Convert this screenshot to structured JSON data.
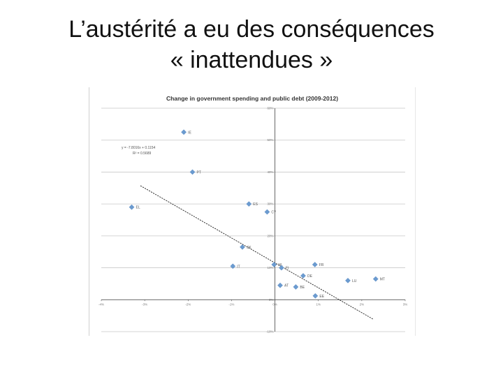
{
  "slide": {
    "title_line1": "L’austérité a eu des conséquences",
    "title_line2": "« inattendues »"
  },
  "colors": {
    "marker": "#6b9bd0",
    "grid": "#c8c8c8",
    "axis": "#555555",
    "trend": "#222222"
  },
  "chart_data": {
    "type": "scatter",
    "title": "Change in government spending and public debt (2009-2012)",
    "xlabel": "",
    "ylabel": "",
    "xlim": [
      -0.04,
      0.03
    ],
    "ylim": [
      -0.1,
      0.6
    ],
    "x_ticks": [
      "-4%",
      "-3%",
      "-2%",
      "-1%",
      "0%",
      "1%",
      "2%",
      "3%"
    ],
    "y_ticks": [
      "-10%",
      "0%",
      "10%",
      "20%",
      "30%",
      "40%",
      "50%",
      "60%"
    ],
    "grid": true,
    "points": [
      {
        "label": "IE",
        "x": -0.021,
        "y": 0.525
      },
      {
        "label": "PT",
        "x": -0.019,
        "y": 0.4
      },
      {
        "label": "EL",
        "x": -0.033,
        "y": 0.29
      },
      {
        "label": "ES",
        "x": -0.006,
        "y": 0.3
      },
      {
        "label": "CY",
        "x": -0.0018,
        "y": 0.275
      },
      {
        "label": "SK",
        "x": -0.0075,
        "y": 0.165
      },
      {
        "label": "IT",
        "x": -0.0097,
        "y": 0.105
      },
      {
        "label": "NL",
        "x": -0.0002,
        "y": 0.11
      },
      {
        "label": "FI",
        "x": 0.0015,
        "y": 0.1
      },
      {
        "label": "FR",
        "x": 0.0092,
        "y": 0.11
      },
      {
        "label": "DE",
        "x": 0.0065,
        "y": 0.075
      },
      {
        "label": "AT",
        "x": 0.0012,
        "y": 0.045
      },
      {
        "label": "BE",
        "x": 0.0048,
        "y": 0.04
      },
      {
        "label": "EE",
        "x": 0.0093,
        "y": 0.012
      },
      {
        "label": "LU",
        "x": 0.0168,
        "y": 0.06
      },
      {
        "label": "MT",
        "x": 0.0232,
        "y": 0.065
      }
    ],
    "trendline": {
      "slope": -7.8016,
      "intercept": 0.1154,
      "equation": "y = -7.8016x + 0.1154",
      "r_squared": "R² = 0.5689"
    }
  }
}
